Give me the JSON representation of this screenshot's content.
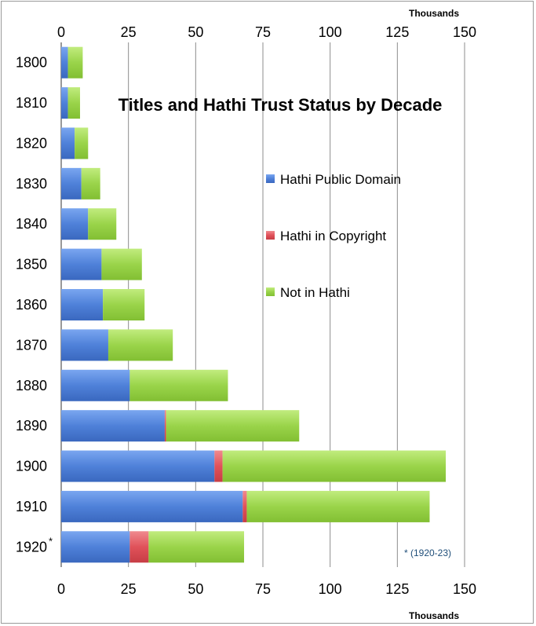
{
  "chart_data": {
    "type": "bar",
    "orientation": "horizontal",
    "stacked": true,
    "title": "Titles and Hathi Trust Status by Decade",
    "xlabel": "Thousands",
    "xlim": [
      0,
      150
    ],
    "xticks": [
      "0",
      "25",
      "50",
      "75",
      "100",
      "125",
      "150"
    ],
    "grid": true,
    "legend_position": "right",
    "categories": [
      "1800",
      "1810",
      "1820",
      "1830",
      "1840",
      "1850",
      "1860",
      "1870",
      "1880",
      "1890",
      "1900",
      "1910",
      "1920"
    ],
    "category_marks": {
      "1920": "*"
    },
    "series": [
      {
        "name": "Hathi Public Domain",
        "color": "#4f81d9",
        "values": [
          2.5,
          2.5,
          5,
          7.5,
          10,
          15,
          15.5,
          17.5,
          25.5,
          38.5,
          57,
          67.5,
          25.5
        ]
      },
      {
        "name": "Hathi in Copyright",
        "color": "#e0525a",
        "values": [
          0,
          0,
          0,
          0,
          0,
          0,
          0,
          0,
          0,
          0.5,
          3,
          1.5,
          7
        ]
      },
      {
        "name": "Not in Hathi",
        "color": "#9ad44a",
        "values": [
          5.5,
          4.5,
          5,
          7,
          10.5,
          15,
          15.5,
          24,
          36.5,
          49.5,
          83,
          68,
          35.5
        ]
      }
    ],
    "annotation": "* (1920-23)"
  }
}
